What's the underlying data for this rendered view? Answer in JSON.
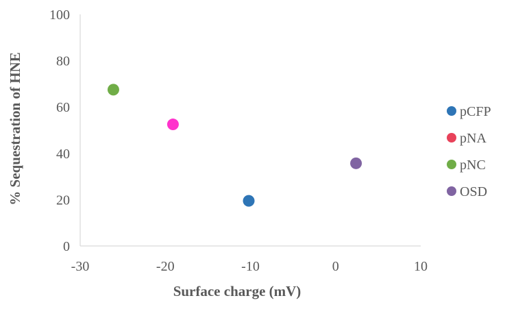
{
  "chart_data": {
    "type": "scatter",
    "title": "",
    "xlabel": "Surface charge (mV)",
    "ylabel": "% Sequestration of HNE",
    "xlim": [
      -30,
      10
    ],
    "ylim": [
      0,
      100
    ],
    "xticks": [
      "-30",
      "-20",
      "-10",
      "0",
      "10"
    ],
    "yticks": [
      "0",
      "20",
      "40",
      "60",
      "80",
      "100"
    ],
    "grid": false,
    "legend_position": "right",
    "series": [
      {
        "name": "pCFP",
        "color": "#2e75b6",
        "points": [
          {
            "x": -10.2,
            "y": 19.5
          }
        ]
      },
      {
        "name": "pNA",
        "color": "#ff33cc",
        "points": [
          {
            "x": -19.1,
            "y": 52.5
          }
        ]
      },
      {
        "name": "pNC",
        "color": "#70ad47",
        "points": [
          {
            "x": -26.1,
            "y": 67.5
          }
        ]
      },
      {
        "name": "OSD",
        "color": "#8064a2",
        "points": [
          {
            "x": 2.4,
            "y": 35.7
          }
        ]
      }
    ],
    "legend_marker_colors": {
      "pNA": "#e8425a"
    }
  }
}
